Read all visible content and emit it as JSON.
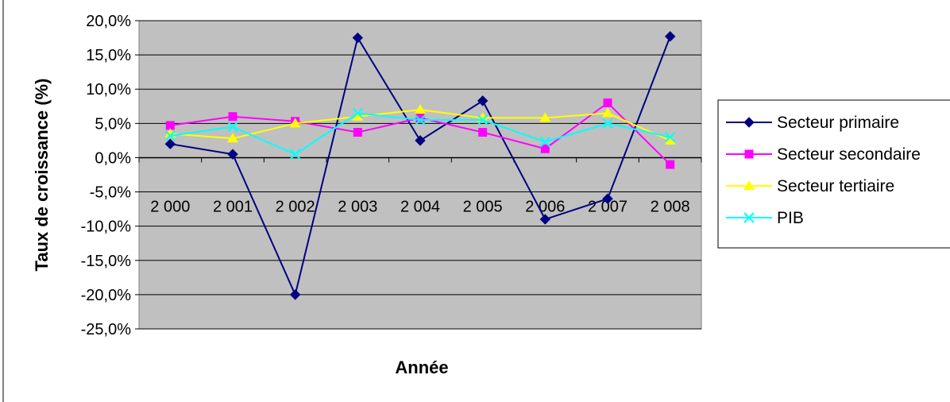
{
  "chart_data": {
    "type": "line",
    "title": "",
    "xlabel": "Année",
    "ylabel": "Taux de croissance (%)",
    "categories": [
      "2 000",
      "2 001",
      "2 002",
      "2 003",
      "2 004",
      "2 005",
      "2 006",
      "2 007",
      "2 008"
    ],
    "y_ticks": [
      "20,0%",
      "15,0%",
      "10,0%",
      "5,0%",
      "0,0%",
      "-5,0%",
      "-10,0%",
      "-15,0%",
      "-20,0%",
      "-25,0%"
    ],
    "ylim": [
      -25,
      20
    ],
    "grid": true,
    "legend_position": "right",
    "plot_background": "#c0c0c0",
    "series": [
      {
        "name": "Secteur primaire",
        "color": "#000080",
        "marker": "diamond",
        "values": [
          2.0,
          0.5,
          -20.0,
          17.5,
          2.5,
          8.3,
          -9.0,
          -6.0,
          17.7
        ]
      },
      {
        "name": "Secteur secondaire",
        "color": "#ff00ff",
        "marker": "square",
        "values": [
          4.7,
          6.0,
          5.3,
          3.7,
          5.8,
          3.7,
          1.3,
          8.0,
          -1.0
        ]
      },
      {
        "name": "Secteur tertiaire",
        "color": "#ffff00",
        "marker": "triangle",
        "values": [
          3.5,
          2.8,
          5.0,
          6.0,
          7.0,
          5.8,
          5.8,
          6.5,
          2.5
        ]
      },
      {
        "name": "PIB",
        "color": "#00ffff",
        "marker": "x",
        "values": [
          3.2,
          4.5,
          0.5,
          6.5,
          5.5,
          5.5,
          2.3,
          5.0,
          3.0
        ]
      }
    ]
  }
}
